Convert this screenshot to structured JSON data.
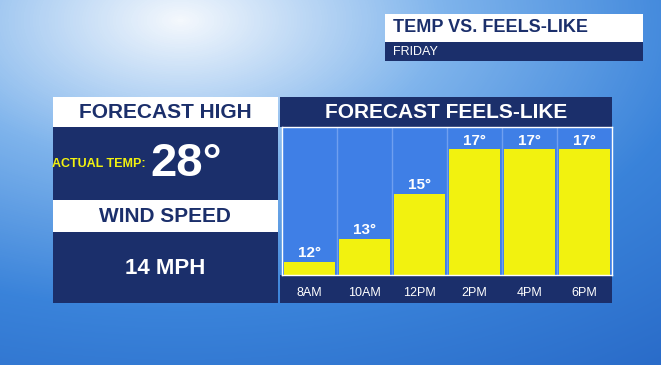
{
  "header": {
    "title": "TEMP VS. FEELS-LIKE",
    "subtitle": "FRIDAY"
  },
  "panel": {
    "high_title": "FORECAST HIGH",
    "temp_label": "ACTUAL TEMP:",
    "temp": "28°",
    "wind_title": "WIND SPEED",
    "wind": "14 MPH"
  },
  "chart_data": {
    "type": "bar",
    "title": "FORECAST FEELS-LIKE",
    "categories": [
      "8AM",
      "10AM",
      "12PM",
      "2PM",
      "4PM",
      "6PM"
    ],
    "values": [
      12,
      13,
      15,
      17,
      17,
      17
    ],
    "value_labels": [
      "12°",
      "13°",
      "15°",
      "17°",
      "17°",
      "17°"
    ],
    "data_labels": true,
    "color": "#f2f20f",
    "ylim": [
      11.4,
      18
    ],
    "tick_labels": "x"
  }
}
